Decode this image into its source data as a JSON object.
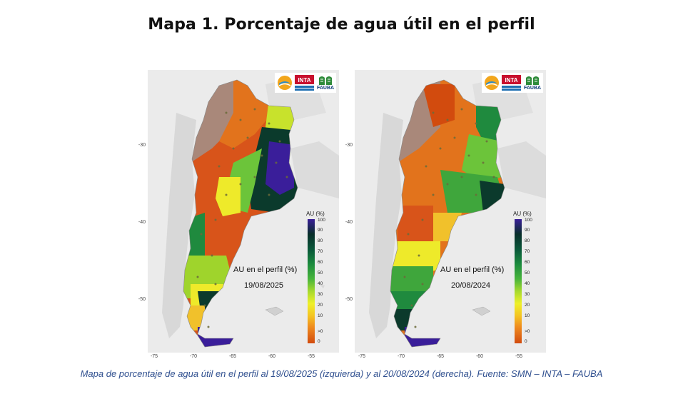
{
  "title": "Mapa 1. Porcentaje de agua útil en el perfil",
  "footer": "Mapa de porcentaje de agua útil en el perfil al 19/08/2025 (izquierda) y al 20/08/2024 (derecha). Fuente: SMN – INTA – FAUBA",
  "maps": [
    {
      "caption": "AU en el perfil (%)",
      "date": "19/08/2025"
    },
    {
      "caption": "AU en el perfil (%)",
      "date": "20/08/2024"
    }
  ],
  "legend": {
    "title": "AU (%)",
    "ticks": [
      "100",
      "90",
      "80",
      "70",
      "60",
      "50",
      "40",
      "30",
      "20",
      "10",
      ">0",
      "0"
    ]
  },
  "axes": {
    "y_ticks": [
      "-30",
      "-40",
      "-50"
    ],
    "x_ticks": [
      "-75",
      "-70",
      "-65",
      "-60",
      "-55"
    ]
  },
  "logos": {
    "inta": "INTA",
    "fauba": "FAUBA"
  },
  "colors": {
    "very_wet": "#3a1e9a",
    "wet_dark": "#082e2a",
    "green": "#47b43c",
    "yellow": "#eef02a",
    "orange": "#ef8a1e",
    "dry": "#d24b0e",
    "no_data": "#a9887a"
  }
}
